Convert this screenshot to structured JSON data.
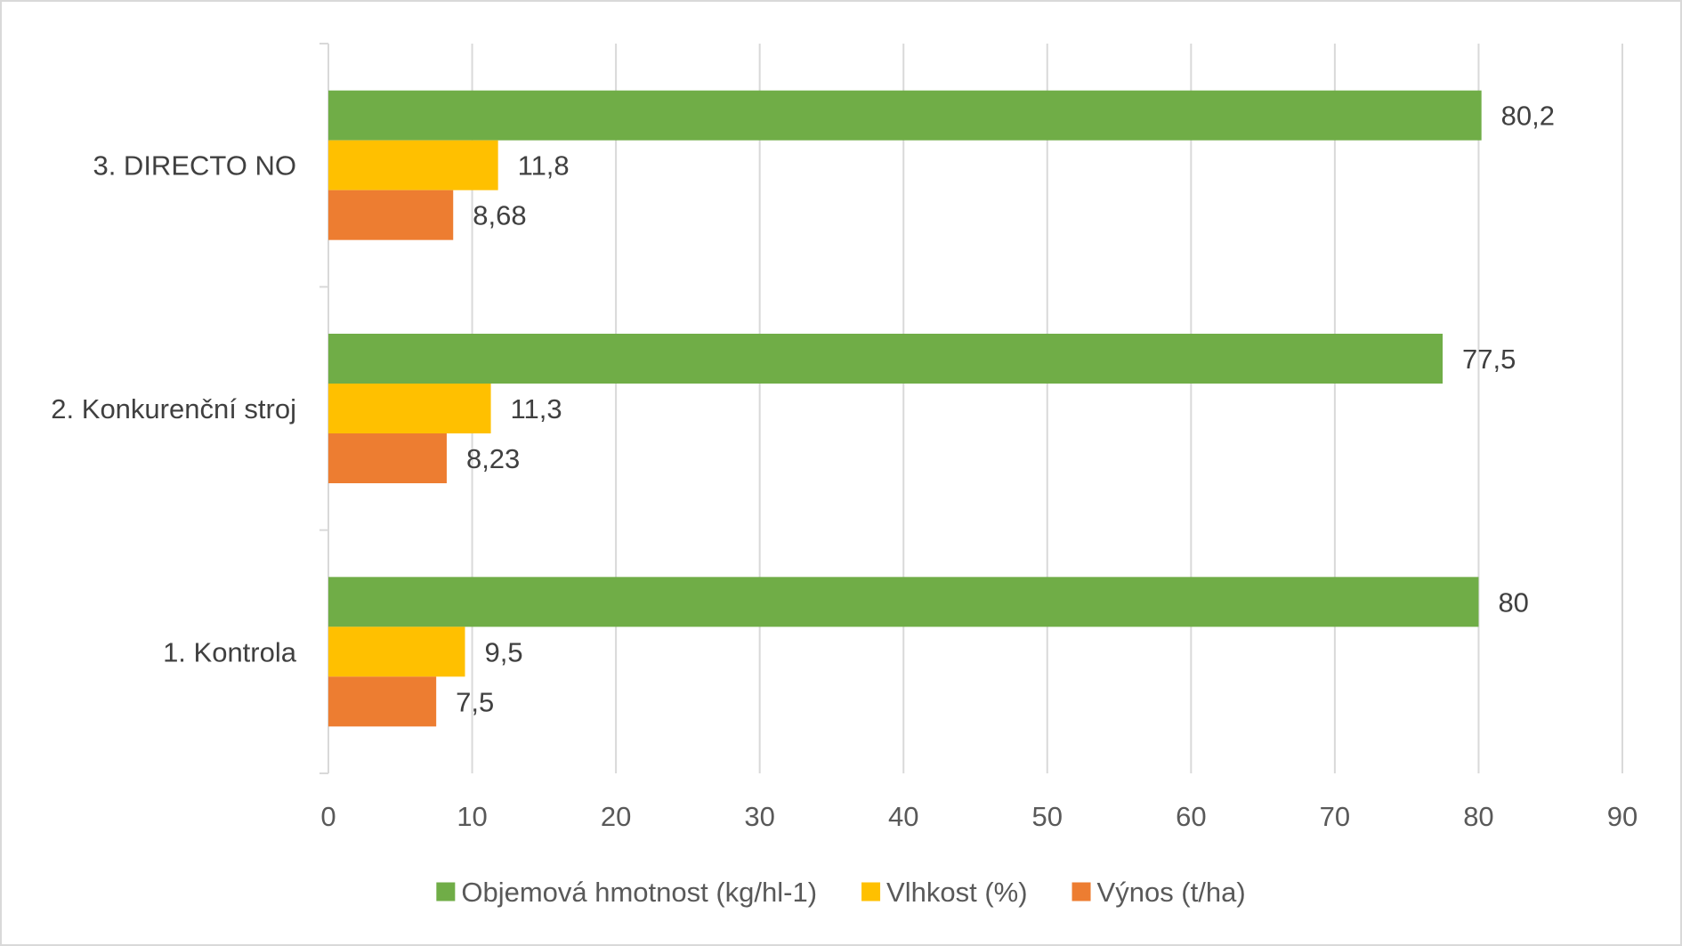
{
  "chart_data": {
    "type": "bar",
    "orientation": "horizontal",
    "categories": [
      "1. Kontrola",
      "2. Konkurenční stroj",
      "3. DIRECTO NO"
    ],
    "series": [
      {
        "name": "Objemová hmotnost (kg/hl-1)",
        "color": "#70ad47",
        "values": [
          80,
          77.5,
          80.2
        ],
        "labels": [
          "80",
          "77,5",
          "80,2"
        ]
      },
      {
        "name": "Vlhkost (%)",
        "color": "#ffc000",
        "values": [
          9.5,
          11.3,
          11.8
        ],
        "labels": [
          "9,5",
          "11,3",
          "11,8"
        ]
      },
      {
        "name": "Výnos (t/ha)",
        "color": "#ed7d31",
        "values": [
          7.5,
          8.23,
          8.68
        ],
        "labels": [
          "7,5",
          "8,23",
          "8,68"
        ]
      }
    ],
    "xlim": [
      0,
      90
    ],
    "xticks": [
      0,
      10,
      20,
      30,
      40,
      50,
      60,
      70,
      80,
      90
    ],
    "xtick_labels": [
      "0",
      "10",
      "20",
      "30",
      "40",
      "50",
      "60",
      "70",
      "80",
      "90"
    ],
    "grid": true,
    "legend_position": "bottom",
    "title": "",
    "xlabel": "",
    "ylabel": ""
  }
}
